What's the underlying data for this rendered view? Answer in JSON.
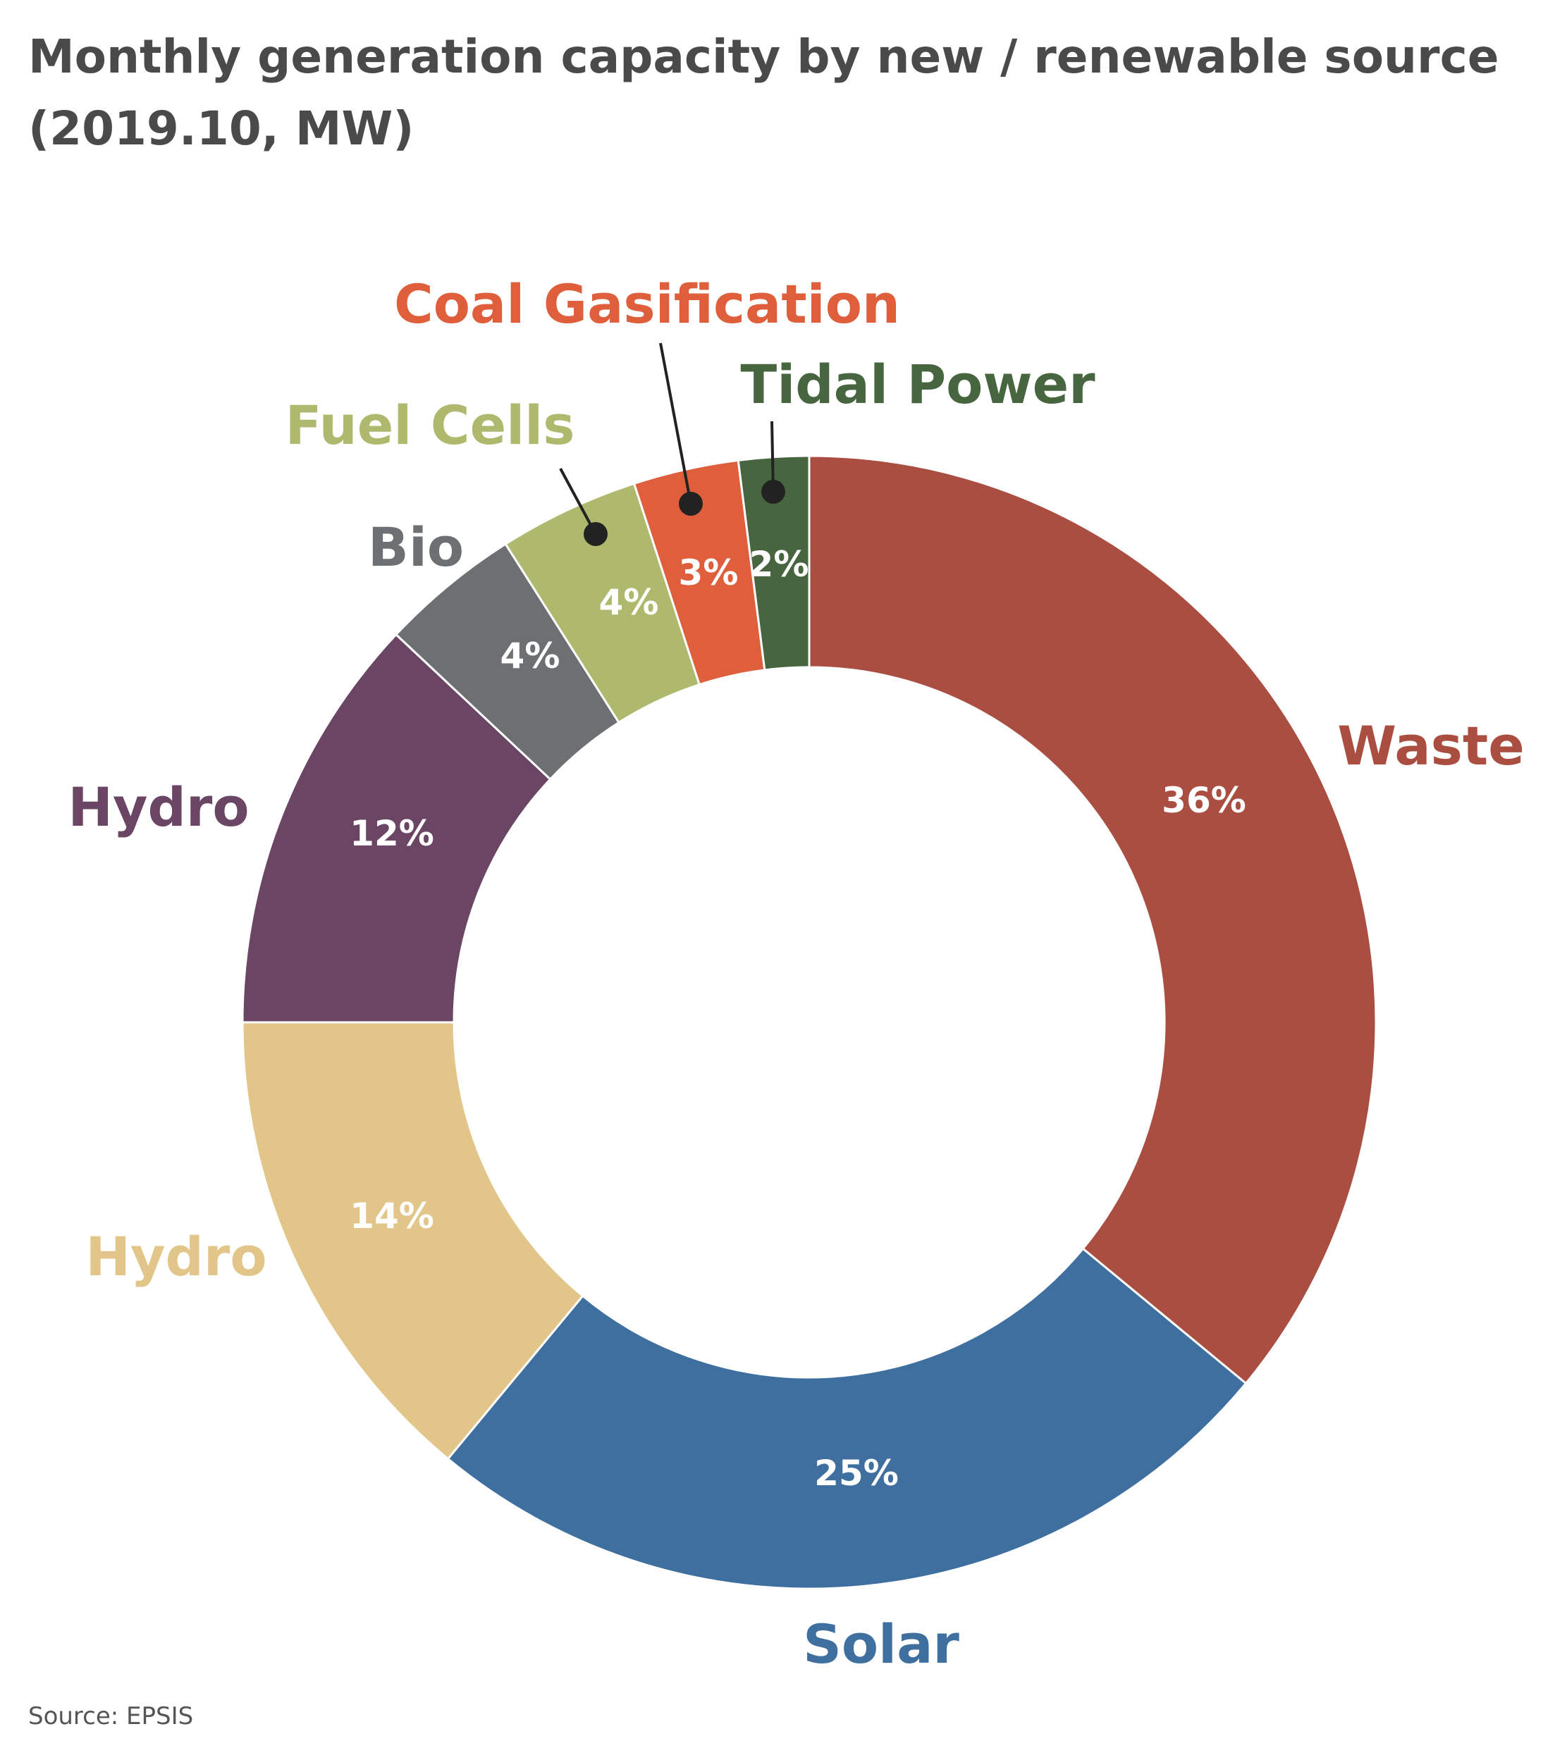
{
  "chart_data": {
    "type": "pie",
    "donut": true,
    "title_lines": [
      "Monthly generation capacity by new / renewable source",
      "(2019.10, MW)"
    ],
    "slices": [
      {
        "name": "Waste",
        "pct_label": "36%",
        "value": 36,
        "color": "#aa4e42"
      },
      {
        "name": "Solar",
        "pct_label": "25%",
        "value": 25,
        "color": "#3e6f9f"
      },
      {
        "name": "Hydro",
        "pct_label": "14%",
        "value": 14,
        "color": "#e2c589"
      },
      {
        "name": "Hydro",
        "pct_label": "12%",
        "value": 12,
        "color": "#6a4564"
      },
      {
        "name": "Bio",
        "pct_label": "4%",
        "value": 4,
        "color": "#6d7072"
      },
      {
        "name": "Fuel Cells",
        "pct_label": "4%",
        "value": 4,
        "color": "#aeb96e"
      },
      {
        "name": "Coal Gasification",
        "pct_label": "3%",
        "value": 3,
        "color": "#df5f3c"
      },
      {
        "name": "Tidal Power",
        "pct_label": "2%",
        "value": 2,
        "color": "#47653f"
      }
    ],
    "label_text_colors": {
      "Bio": "#6d7072"
    },
    "source": "Source: EPSIS"
  }
}
